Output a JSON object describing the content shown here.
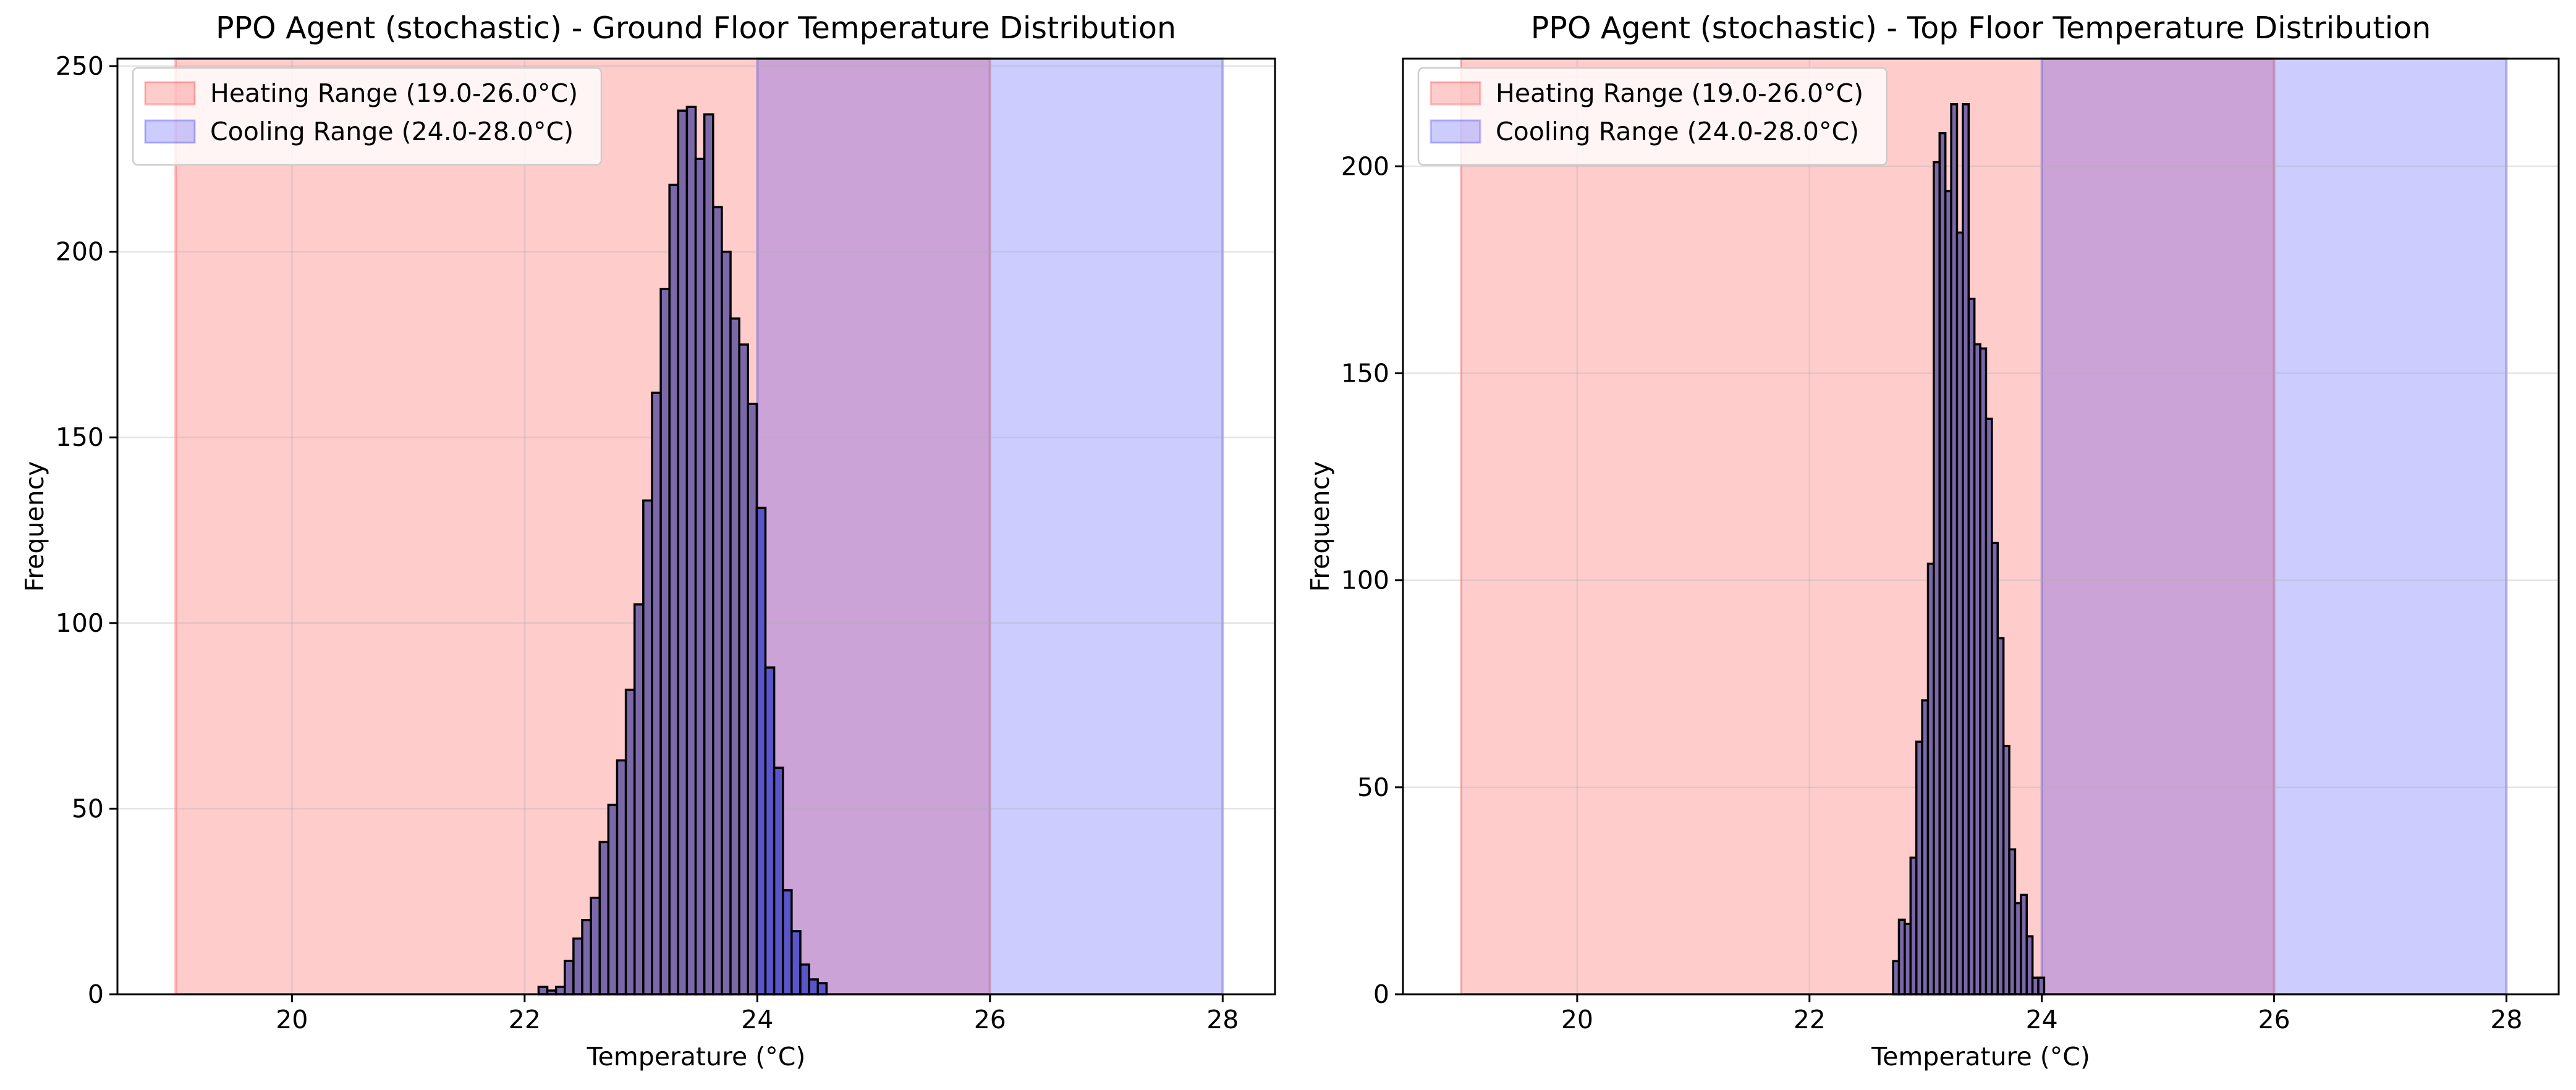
{
  "colors": {
    "heating": "#ff0000",
    "cooling": "#0000ff",
    "bar_fill": "#7b68a8",
    "bar_over_cooling": "#5a55c8",
    "bar_edge": "#000000",
    "grid": "#b0b0b0"
  },
  "chart_data": [
    {
      "type": "bar",
      "title": "PPO Agent (stochastic) - Ground Floor Temperature Distribution",
      "xlabel": "Temperature (°C)",
      "ylabel": "Frequency",
      "xlim": [
        18.5,
        28.45
      ],
      "ylim": [
        0,
        252
      ],
      "xticks": [
        20,
        22,
        24,
        26,
        28
      ],
      "yticks": [
        0,
        50,
        100,
        150,
        200,
        250
      ],
      "grid": true,
      "legend_position": "top-left",
      "bands": [
        {
          "label": "Heating Range (19.0-26.0°C)",
          "from": 19.0,
          "to": 26.0,
          "color": "heating"
        },
        {
          "label": "Cooling Range (24.0-28.0°C)",
          "from": 24.0,
          "to": 28.0,
          "color": "cooling"
        }
      ],
      "bin_start": 22.12,
      "bin_width": 0.075,
      "values": [
        2,
        1,
        2,
        9,
        15,
        20,
        26,
        41,
        51,
        63,
        82,
        105,
        133,
        162,
        190,
        218,
        238,
        239,
        225,
        237,
        212,
        200,
        182,
        175,
        159,
        131,
        88,
        61,
        28,
        17,
        8,
        4,
        3
      ]
    },
    {
      "type": "bar",
      "title": "PPO Agent (stochastic) - Top Floor Temperature Distribution",
      "xlabel": "Temperature (°C)",
      "ylabel": "Frequency",
      "xlim": [
        18.5,
        28.45
      ],
      "ylim": [
        0,
        226
      ],
      "xticks": [
        20,
        22,
        24,
        26,
        28
      ],
      "yticks": [
        0,
        50,
        100,
        150,
        200
      ],
      "grid": true,
      "legend_position": "top-left",
      "bands": [
        {
          "label": "Heating Range (19.0-26.0°C)",
          "from": 19.0,
          "to": 26.0,
          "color": "heating"
        },
        {
          "label": "Cooling Range (24.0-28.0°C)",
          "from": 24.0,
          "to": 28.0,
          "color": "cooling"
        }
      ],
      "bin_start": 22.72,
      "bin_width": 0.05,
      "values": [
        8,
        18,
        17,
        33,
        61,
        71,
        104,
        201,
        208,
        194,
        215,
        184,
        215,
        168,
        157,
        156,
        139,
        109,
        86,
        60,
        35,
        22,
        24,
        14,
        4,
        4
      ]
    }
  ]
}
